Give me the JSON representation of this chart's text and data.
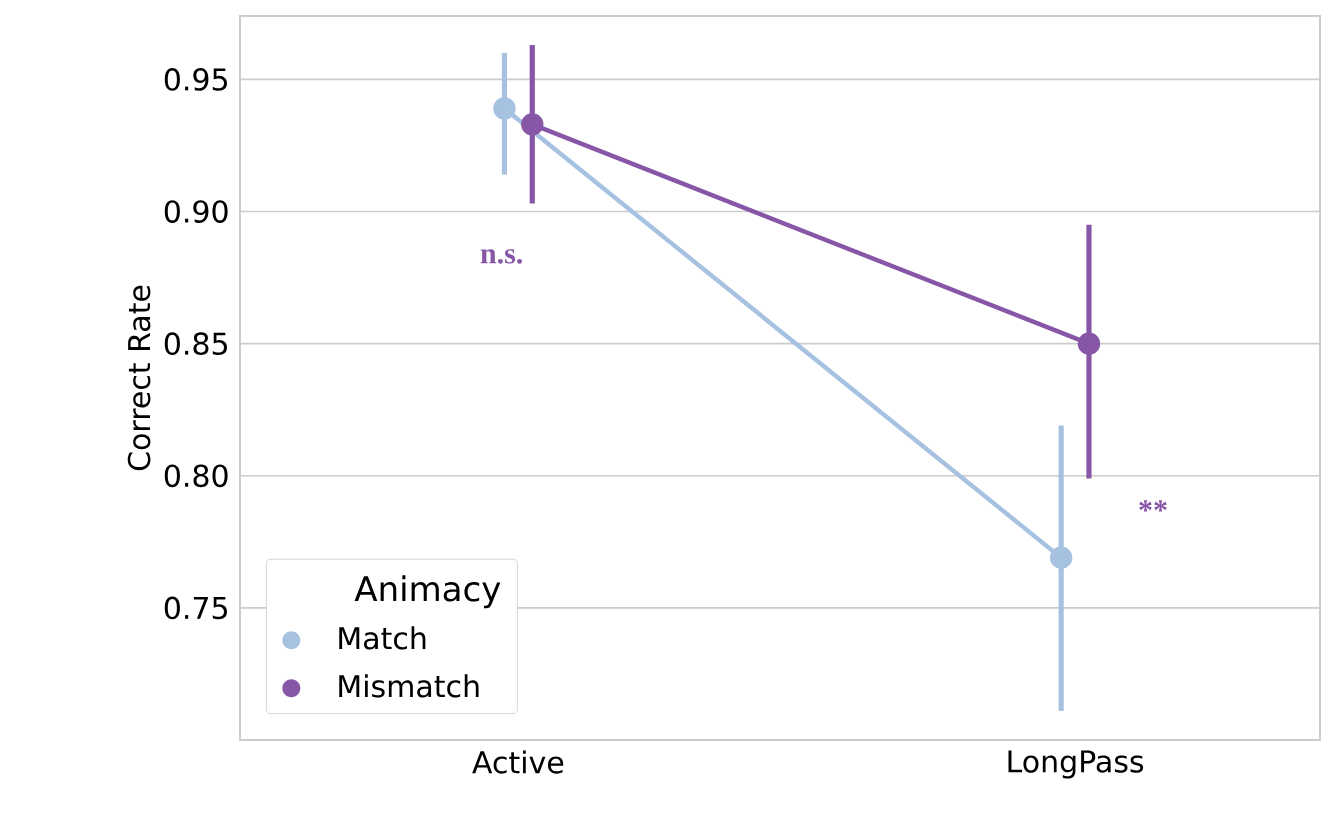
{
  "chart_data": {
    "type": "line",
    "ylabel": "Correct Rate",
    "legend_title": "Animacy",
    "categories": [
      "Active",
      "LongPass"
    ],
    "series": [
      {
        "name": "Match",
        "color": "#a6c2e0",
        "values": [
          0.939,
          0.769
        ],
        "errors": [
          [
            0.914,
            0.96
          ],
          [
            0.711,
            0.819
          ]
        ]
      },
      {
        "name": "Mismatch",
        "color": "#8856a7",
        "values": [
          0.933,
          0.85
        ],
        "errors": [
          [
            0.903,
            0.963
          ],
          [
            0.799,
            0.895
          ]
        ]
      }
    ],
    "ylim": [
      0.7,
      0.974
    ],
    "yticks": [
      0.75,
      {
        "value": 0.8,
        "label": "0.80"
      },
      0.85,
      {
        "value": 0.9,
        "label": "0.90"
      },
      0.95
    ],
    "grid": "y",
    "legend": "bottom left",
    "marker": "circle",
    "line_style": "solid",
    "annotations": [
      "n.s.",
      "**"
    ]
  }
}
